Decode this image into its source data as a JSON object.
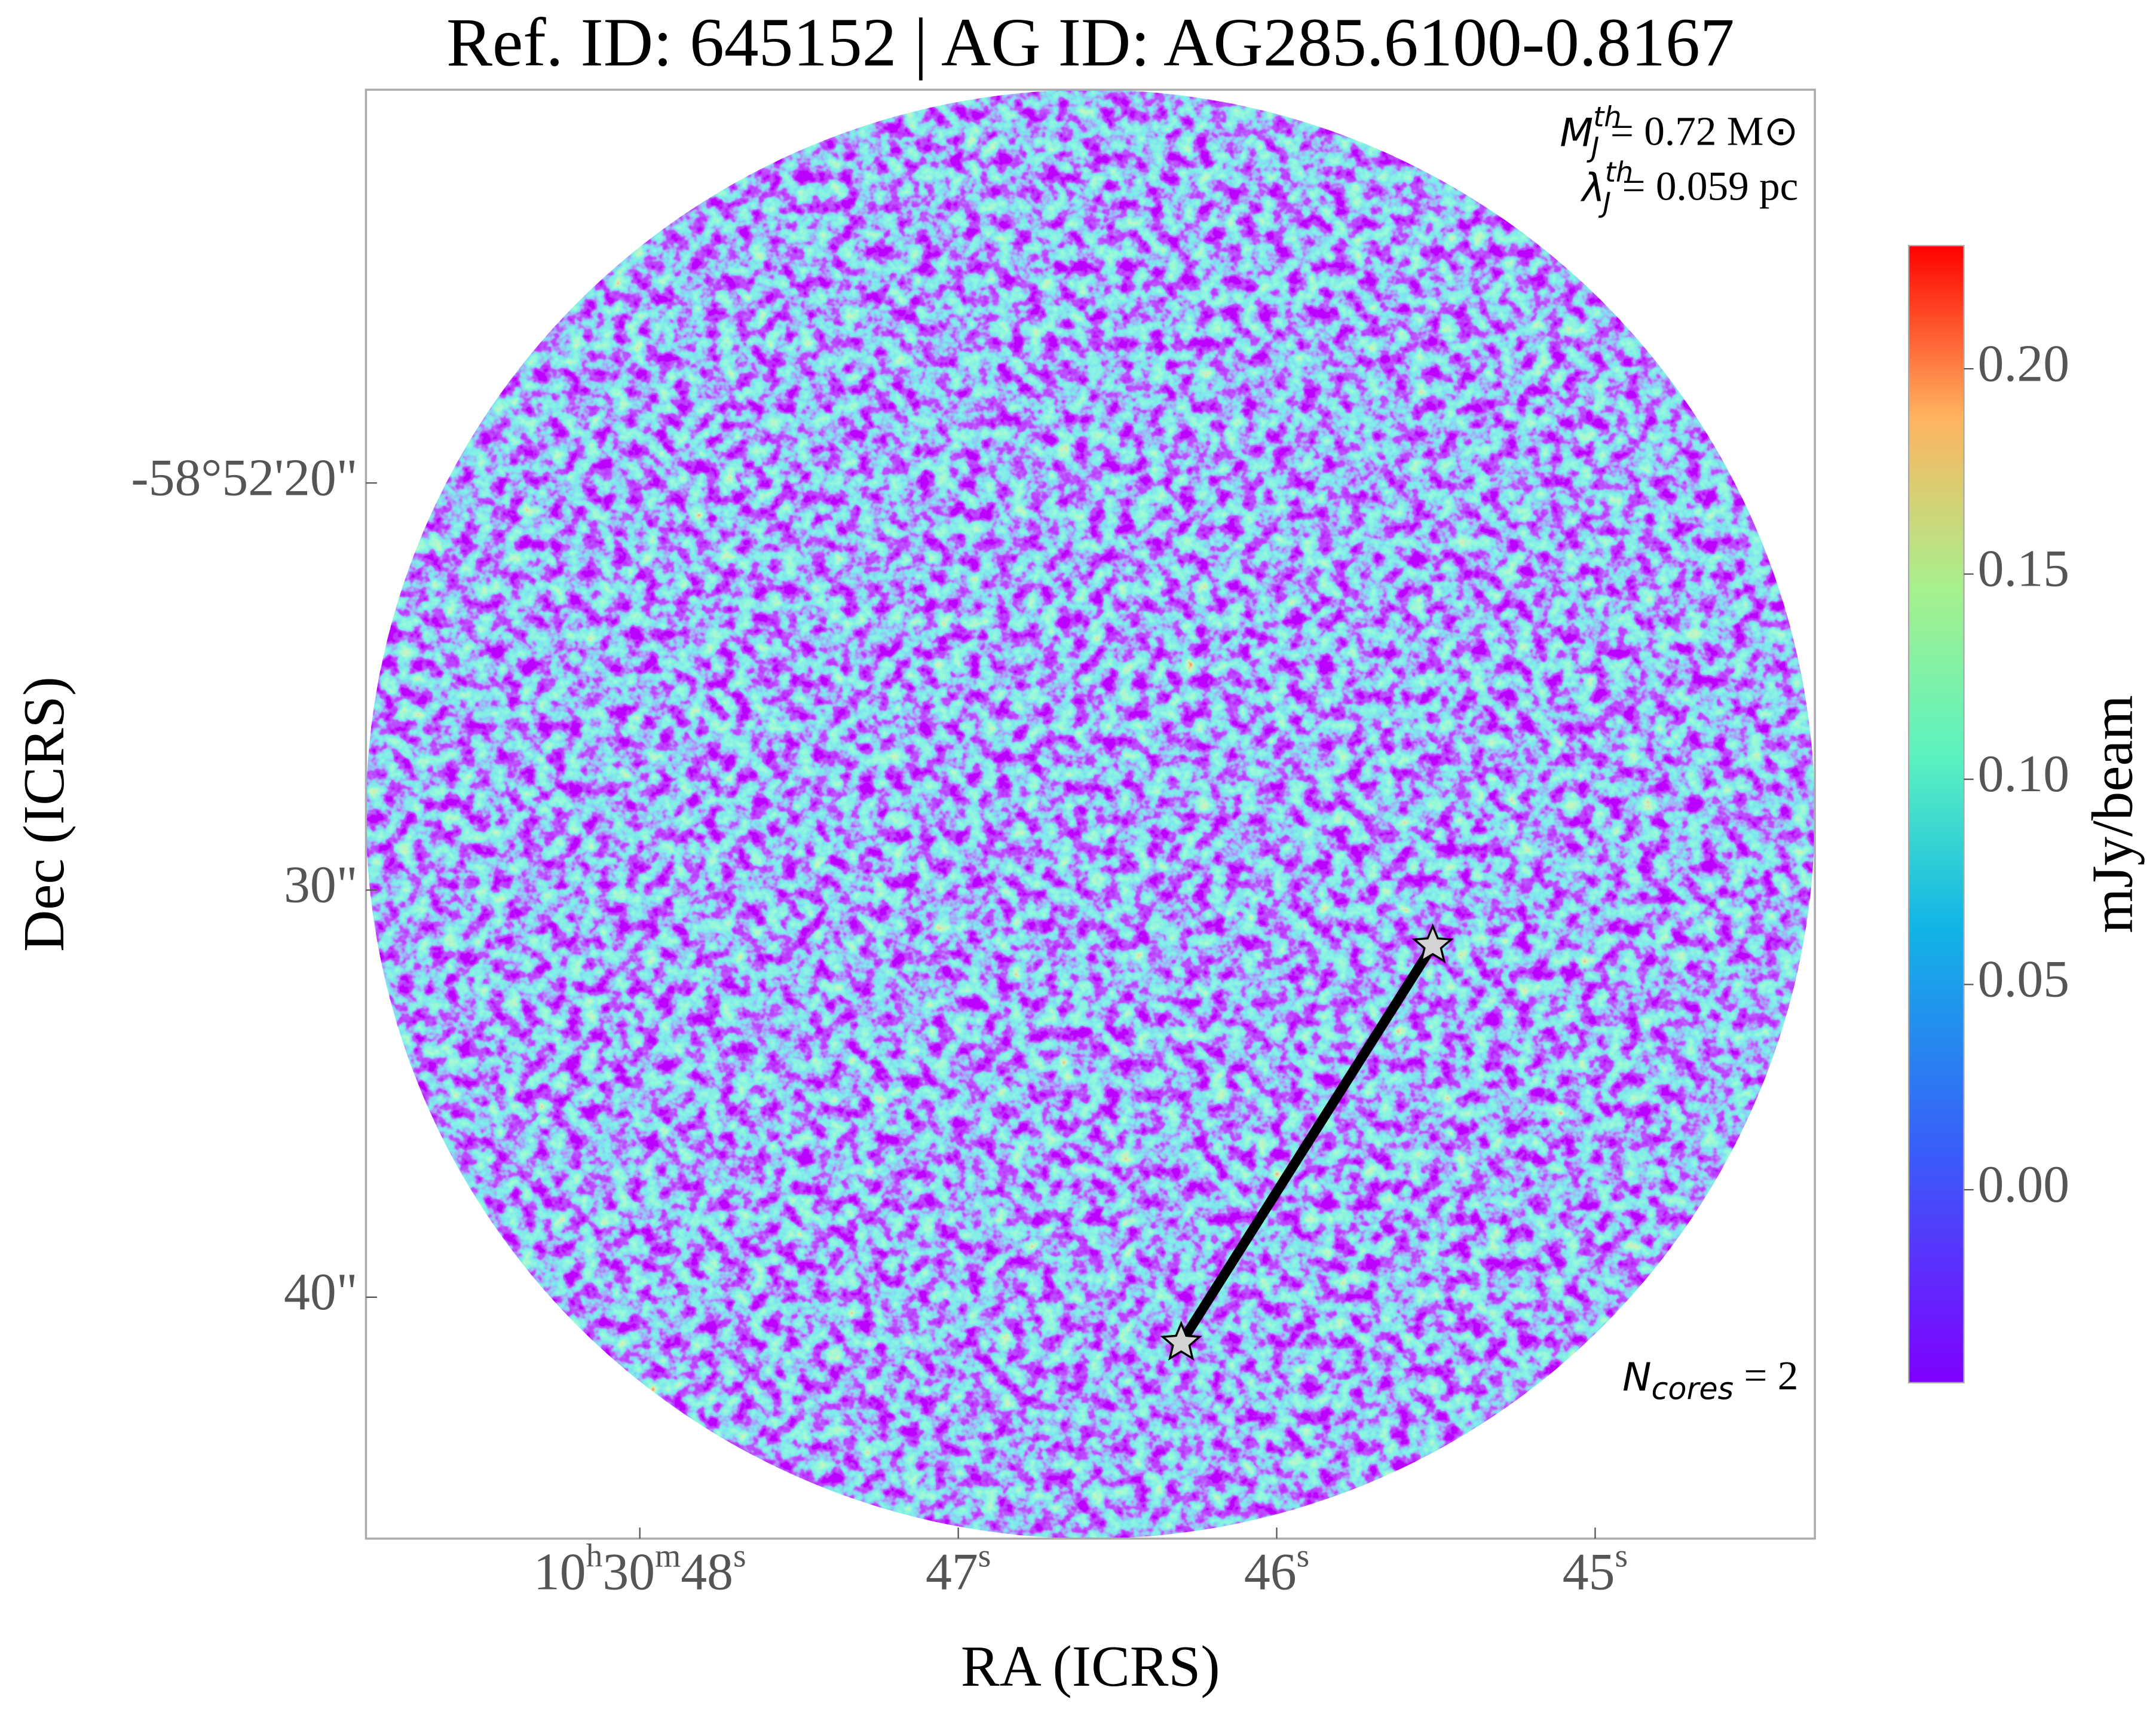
{
  "chart_data": {
    "type": "image",
    "title": "Ref. ID: 645152 | AG ID: AG285.6100-0.8167",
    "xlabel": "RA (ICRS)",
    "ylabel": "Dec (ICRS)",
    "xlim": [
      48.86,
      44.31
    ],
    "xticks": [
      {
        "value": 48,
        "label": "10h30m48s"
      },
      {
        "value": 47,
        "label": "47s"
      },
      {
        "value": 46,
        "label": "46s"
      },
      {
        "value": 45,
        "label": "45s"
      }
    ],
    "ylim": [
      10.34,
      45.93
    ],
    "yticks": [
      {
        "value": 20,
        "label": "-58°52'20\""
      },
      {
        "value": 30,
        "label": "30\""
      },
      {
        "value": 40,
        "label": "40\""
      }
    ],
    "cores": {
      "x": [
        45.51,
        46.3
      ],
      "y": [
        31.36,
        41.12
      ],
      "color": "#d3d3d3"
    },
    "colorbar": {
      "label": "mJy/beam",
      "clim": [
        -0.047,
        0.23
      ],
      "colormap": "rainbow",
      "ticks": [
        {
          "value": 0,
          "label": "0.00"
        },
        {
          "value": 0.05,
          "label": "0.05"
        },
        {
          "value": 0.1,
          "label": "0.10"
        },
        {
          "value": 0.15,
          "label": "0.15"
        },
        {
          "value": 0.2,
          "label": "0.20"
        }
      ]
    },
    "annotations": [
      {
        "symbol": "M",
        "sub": "J",
        "sup": "th",
        "text": "= 0.72 M⊙"
      },
      {
        "symbol": "λ",
        "sub": "J",
        "sup": "th",
        "text": "= 0.059 pc"
      },
      {
        "symbol": "N",
        "sub": "cores",
        "text": " = 2"
      }
    ]
  }
}
